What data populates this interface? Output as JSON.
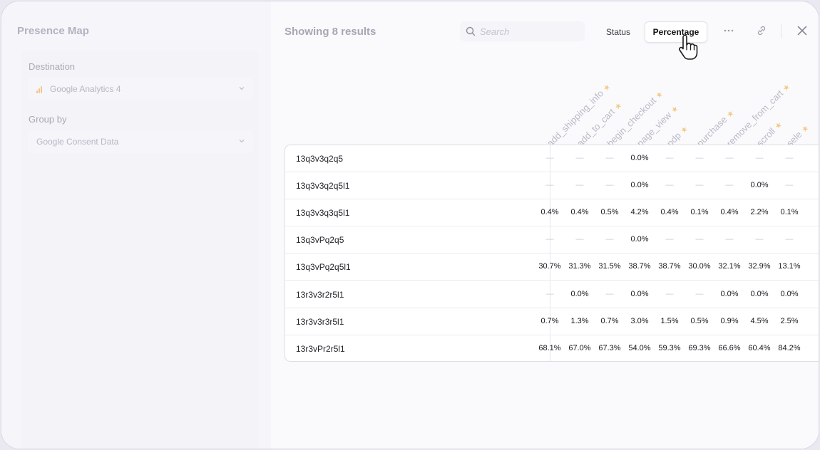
{
  "left_panel": {
    "title": "Presence Map",
    "destination": {
      "label": "Destination",
      "value": "Google Analytics 4"
    },
    "group_by": {
      "label": "Group by",
      "value": "Google Consent Data"
    }
  },
  "toolbar": {
    "results_text": "Showing 8 results",
    "search_placeholder": "Search",
    "status_label": "Status",
    "percentage_label": "Percentage"
  },
  "columns": [
    {
      "label": "add_shipping_info"
    },
    {
      "label": "add_to_cart"
    },
    {
      "label": "begin_checkout"
    },
    {
      "label": "page_view"
    },
    {
      "label": "pdp"
    },
    {
      "label": "purchase"
    },
    {
      "label": "remove_from_cart"
    },
    {
      "label": "scroll"
    },
    {
      "label": "sele"
    }
  ],
  "rows": [
    {
      "label": "13q3v3q2q5",
      "values": [
        "—",
        "—",
        "—",
        "0.0%",
        "—",
        "—",
        "—",
        "—",
        "—"
      ]
    },
    {
      "label": "13q3v3q2q5l1",
      "values": [
        "—",
        "—",
        "—",
        "0.0%",
        "—",
        "—",
        "—",
        "0.0%",
        "—"
      ]
    },
    {
      "label": "13q3v3q3q5l1",
      "values": [
        "0.4%",
        "0.4%",
        "0.5%",
        "4.2%",
        "0.4%",
        "0.1%",
        "0.4%",
        "2.2%",
        "0.1%"
      ]
    },
    {
      "label": "13q3vPq2q5",
      "values": [
        "—",
        "—",
        "—",
        "0.0%",
        "—",
        "—",
        "—",
        "—",
        "—"
      ]
    },
    {
      "label": "13q3vPq2q5l1",
      "values": [
        "30.7%",
        "31.3%",
        "31.5%",
        "38.7%",
        "38.7%",
        "30.0%",
        "32.1%",
        "32.9%",
        "13.1%"
      ]
    },
    {
      "label": "13r3v3r2r5l1",
      "values": [
        "—",
        "0.0%",
        "—",
        "0.0%",
        "—",
        "—",
        "0.0%",
        "0.0%",
        "0.0%"
      ]
    },
    {
      "label": "13r3v3r3r5l1",
      "values": [
        "0.7%",
        "1.3%",
        "0.7%",
        "3.0%",
        "1.5%",
        "0.5%",
        "0.9%",
        "4.5%",
        "2.5%"
      ]
    },
    {
      "label": "13r3vPr2r5l1",
      "values": [
        "68.1%",
        "67.0%",
        "67.3%",
        "54.0%",
        "59.3%",
        "69.3%",
        "66.6%",
        "60.4%",
        "84.2%"
      ]
    }
  ],
  "colors": {
    "accent_star": "#f5c987",
    "ga_icon": "#f6c58c"
  }
}
